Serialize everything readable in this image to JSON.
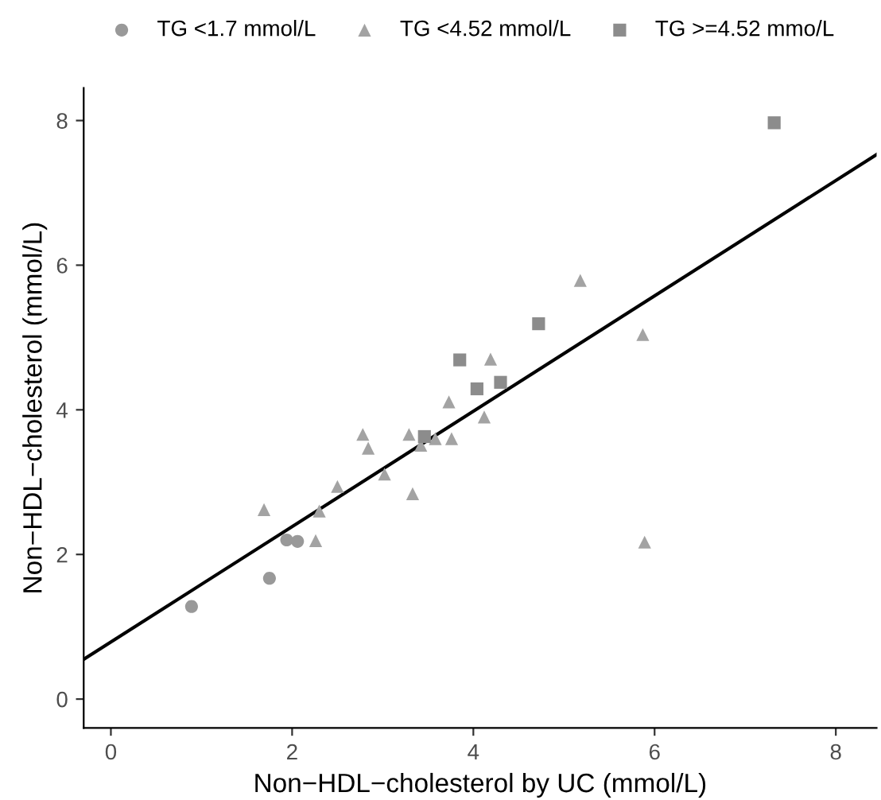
{
  "chart_data": {
    "type": "scatter",
    "xlabel": "Non−HDL−cholesterol by UC (mmol/L)",
    "ylabel": "Non−HDL−cholesterol (mmol/L)",
    "xlim": [
      -0.3,
      8.45
    ],
    "ylim": [
      -0.4,
      8.45
    ],
    "xticks": [
      0,
      2,
      4,
      6,
      8
    ],
    "yticks": [
      0,
      2,
      4,
      6,
      8
    ],
    "grid": false,
    "legend": "top",
    "series": [
      {
        "name": "TG <1.7 mmol/L",
        "color": "#999999",
        "marker": "circle",
        "x": [
          0.89,
          1.75,
          1.94,
          2.06
        ],
        "values": [
          1.28,
          1.67,
          2.2,
          2.18
        ]
      },
      {
        "name": "TG <4.52 mmol/L",
        "color": "#a3a3a3",
        "marker": "triangle",
        "x": [
          1.69,
          2.26,
          2.3,
          2.5,
          2.78,
          2.84,
          3.02,
          3.29,
          3.33,
          3.42,
          3.58,
          3.76,
          3.73,
          4.19,
          4.12,
          5.18,
          5.87,
          5.89
        ],
        "values": [
          2.62,
          2.19,
          2.6,
          2.94,
          3.66,
          3.47,
          3.11,
          3.66,
          2.84,
          3.51,
          3.6,
          3.6,
          4.11,
          4.7,
          3.9,
          5.79,
          5.04,
          2.17
        ]
      },
      {
        "name": "TG >=4.52 mmo/L",
        "color": "#8c8c8c",
        "marker": "square",
        "x": [
          3.46,
          3.85,
          4.04,
          4.3,
          4.72,
          7.32
        ],
        "values": [
          3.63,
          4.69,
          4.29,
          4.38,
          5.19,
          7.97
        ]
      },
      {
        "type": "line",
        "color": "#000000",
        "line_style": "solid",
        "marker": "none",
        "x": [
          -0.3,
          8.45
        ],
        "values": [
          0.55,
          7.53
        ]
      }
    ]
  }
}
